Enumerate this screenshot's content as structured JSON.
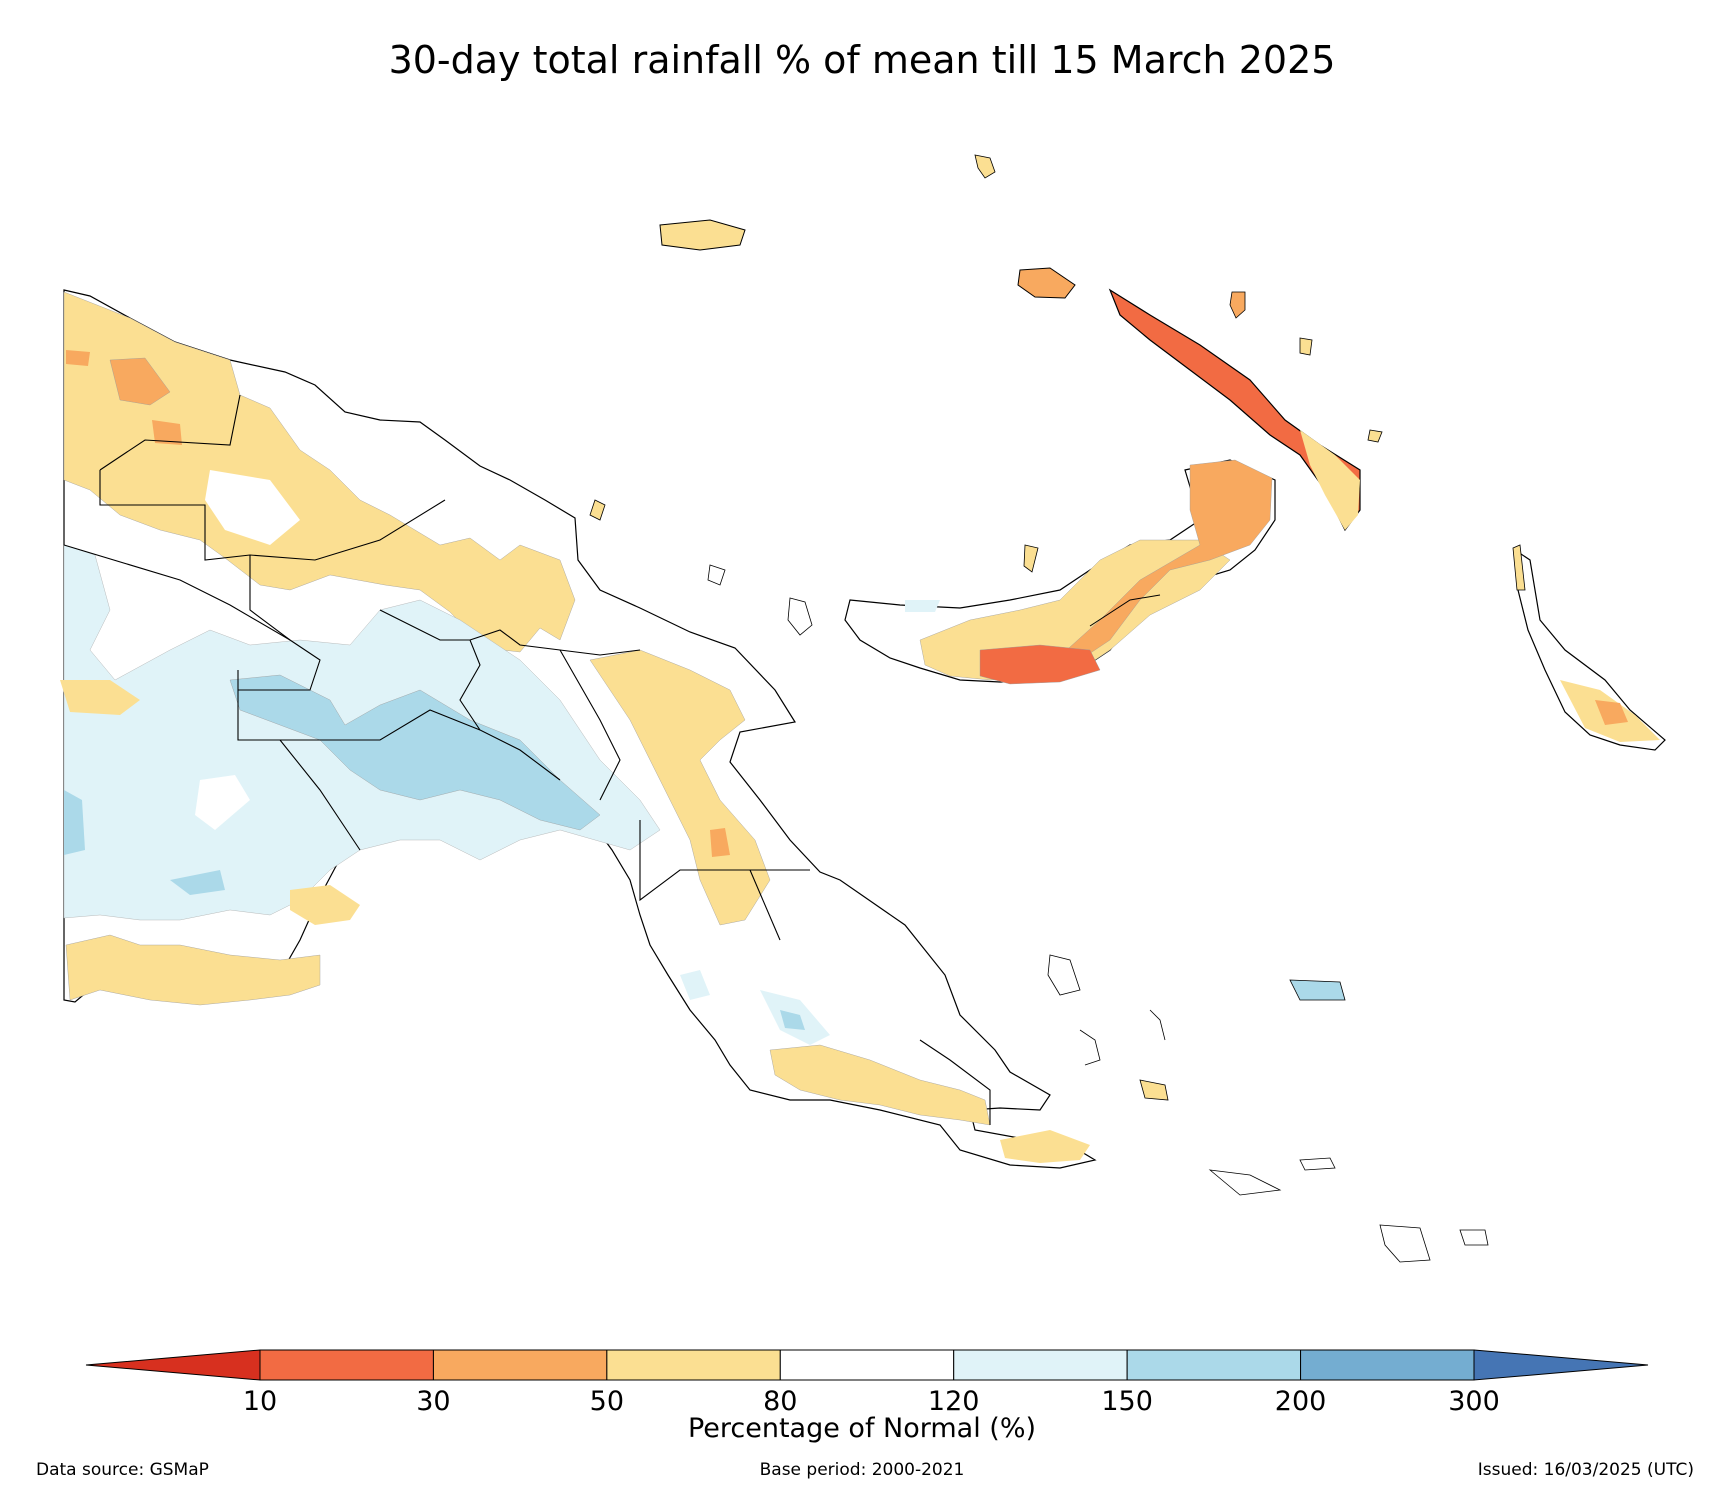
{
  "title": "30-day total rainfall % of mean till 15 March 2025",
  "legend": {
    "label": "Percentage of Normal (%)",
    "ticks": [
      "10",
      "30",
      "50",
      "80",
      "120",
      "150",
      "200",
      "300"
    ],
    "classes": [
      {
        "range": "<10",
        "color": "#d7301f"
      },
      {
        "range": "10-30",
        "color": "#f26b43"
      },
      {
        "range": "30-50",
        "color": "#f8a95f"
      },
      {
        "range": "50-80",
        "color": "#fbdf92"
      },
      {
        "range": "80-120",
        "color": "#ffffff"
      },
      {
        "range": "120-150",
        "color": "#e0f3f8"
      },
      {
        "range": "150-200",
        "color": "#abd9e9"
      },
      {
        "range": "200-300",
        "color": "#74add1"
      },
      {
        "range": ">300",
        "color": "#4575b4"
      }
    ]
  },
  "footer": {
    "source": "Data source: GSMaP",
    "base_period": "Base period: 2000-2021",
    "issued": "Issued: 16/03/2025 (UTC)"
  },
  "map": {
    "region": "Papua New Guinea",
    "layers": [
      "province-boundaries",
      "coastline",
      "rainfall-percent-shading"
    ]
  }
}
